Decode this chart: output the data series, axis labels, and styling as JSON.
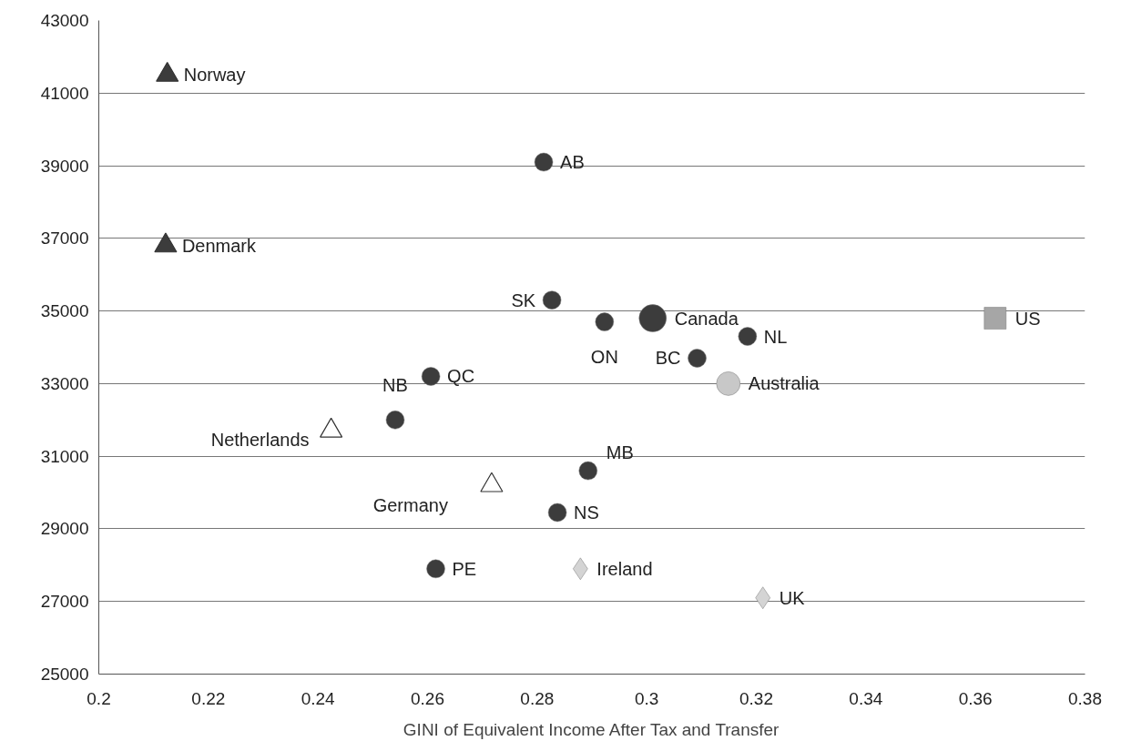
{
  "chart_data": {
    "type": "scatter",
    "xlabel": "GINI of Equivalent Income After Tax and Transfer",
    "xlim": [
      0.2,
      0.38
    ],
    "xticks": [
      0.2,
      0.22,
      0.24,
      0.26,
      0.28,
      0.3,
      0.32,
      0.34,
      0.36,
      0.38
    ],
    "ylim": [
      25000,
      43000
    ],
    "yticks": [
      25000,
      27000,
      29000,
      31000,
      33000,
      35000,
      37000,
      39000,
      41000,
      43000
    ],
    "grid": "y",
    "series": [
      {
        "name": "Norway",
        "color": "#3c3c3c",
        "marker": "triangle",
        "x": [
          0.2125
        ],
        "values": [
          41500
        ]
      },
      {
        "name": "Denmark",
        "color": "#3c3c3c",
        "marker": "triangle",
        "x": [
          0.2122
        ],
        "values": [
          36800
        ]
      },
      {
        "name": "AB",
        "color": "#3c3c3c",
        "marker": "circle",
        "x": [
          0.2812
        ],
        "values": [
          39100
        ]
      },
      {
        "name": "SK",
        "color": "#3c3c3c",
        "marker": "circle",
        "x": [
          0.2827
        ],
        "values": [
          35300
        ]
      },
      {
        "name": "ON",
        "color": "#3c3c3c",
        "marker": "circle",
        "x": [
          0.2923
        ],
        "values": [
          34700
        ]
      },
      {
        "name": "Canada",
        "color": "#3c3c3c",
        "marker": "circle",
        "x": [
          0.3011
        ],
        "values": [
          34800
        ]
      },
      {
        "name": "NL",
        "color": "#3c3c3c",
        "marker": "circle",
        "x": [
          0.3184
        ],
        "values": [
          34300
        ]
      },
      {
        "name": "BC",
        "color": "#3c3c3c",
        "marker": "circle",
        "x": [
          0.3092
        ],
        "values": [
          33700
        ]
      },
      {
        "name": "Australia",
        "color": "#c8c8c8",
        "marker": "circle",
        "x": [
          0.3149
        ],
        "values": [
          33000
        ]
      },
      {
        "name": "US",
        "color": "#a6a6a6",
        "marker": "square",
        "x": [
          0.3636
        ],
        "values": [
          34800
        ]
      },
      {
        "name": "QC",
        "color": "#3c3c3c",
        "marker": "circle",
        "x": [
          0.2606
        ],
        "values": [
          33200
        ]
      },
      {
        "name": "NB",
        "color": "#3c3c3c",
        "marker": "circle",
        "x": [
          0.2541
        ],
        "values": [
          32000
        ]
      },
      {
        "name": "Netherlands",
        "color": "#ffffff",
        "marker": "triangle",
        "x": [
          0.2424
        ],
        "values": [
          31700
        ]
      },
      {
        "name": "MB",
        "color": "#3c3c3c",
        "marker": "circle",
        "x": [
          0.2893
        ],
        "values": [
          30600
        ]
      },
      {
        "name": "Germany",
        "color": "#ffffff",
        "marker": "triangle",
        "x": [
          0.2717
        ],
        "values": [
          30200
        ]
      },
      {
        "name": "NS",
        "color": "#3c3c3c",
        "marker": "circle",
        "x": [
          0.2837
        ],
        "values": [
          29450
        ]
      },
      {
        "name": "PE",
        "color": "#3c3c3c",
        "marker": "circle",
        "x": [
          0.2615
        ],
        "values": [
          27900
        ]
      },
      {
        "name": "Ireland",
        "color": "#d4d4d4",
        "marker": "diamond",
        "x": [
          0.2879
        ],
        "values": [
          27900
        ]
      },
      {
        "name": "UK",
        "color": "#d4d4d4",
        "marker": "diamond",
        "x": [
          0.3212
        ],
        "values": [
          27100
        ]
      }
    ]
  }
}
